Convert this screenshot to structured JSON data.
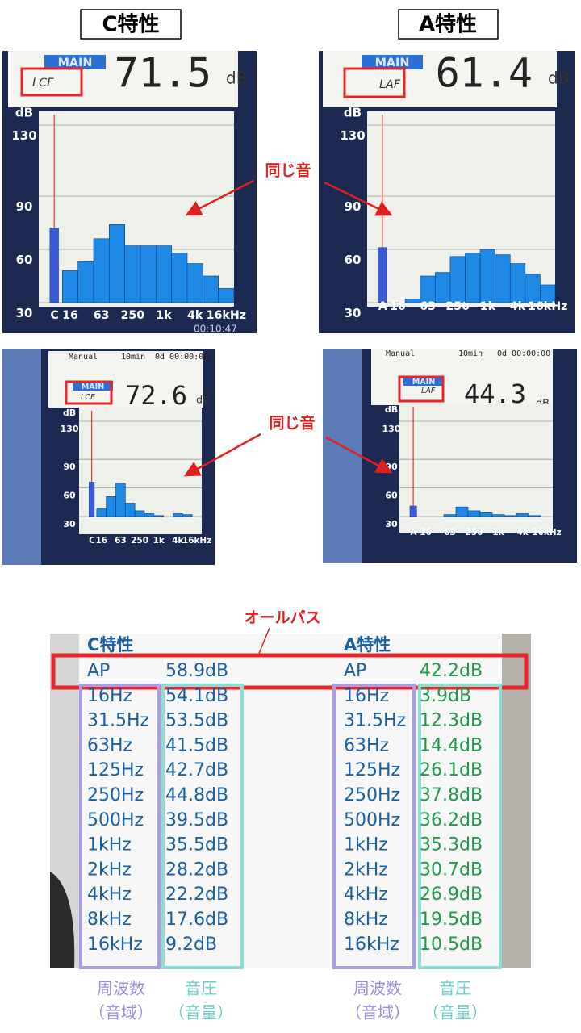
{
  "titles": {
    "c": "C特性",
    "a": "A特性"
  },
  "same_sound": [
    "同じ音",
    "同じ音"
  ],
  "meters": [
    {
      "main": "MAIN",
      "mode": "LCF",
      "reading": "71.5",
      "unit": "dB",
      "clock": "00:10:47",
      "chart": {
        "type": "bar",
        "y_label": "dB",
        "ylim": [
          30,
          130
        ],
        "yticks": [
          130,
          90,
          60,
          30
        ],
        "categories": [
          "C",
          "16",
          null,
          "63",
          null,
          "250",
          null,
          "1k",
          null,
          "4k",
          null,
          "16kHz"
        ],
        "values": [
          72,
          48,
          53,
          66,
          74,
          62,
          62,
          62,
          58,
          52,
          45,
          38
        ],
        "color": "#1e88e5",
        "highlight_color": "#3d5bd9"
      }
    },
    {
      "main": "MAIN",
      "mode": "LAF",
      "reading": "61.4",
      "unit": "dB",
      "chart": {
        "type": "bar",
        "y_label": "dB",
        "ylim": [
          30,
          130
        ],
        "yticks": [
          130,
          90,
          60,
          30
        ],
        "categories": [
          "A",
          "16",
          null,
          "63",
          null,
          "250",
          null,
          "1k",
          null,
          "4k",
          null,
          "16kHz"
        ],
        "values": [
          61,
          30,
          32,
          45,
          47,
          56,
          58,
          60,
          57,
          52,
          46,
          40
        ],
        "color": "#1e88e5",
        "highlight_color": "#3d5bd9"
      }
    },
    {
      "status": [
        "Manual",
        "10min",
        "0d 00:00:00"
      ],
      "main": "MAIN",
      "mode": "LCF",
      "reading": "72.6",
      "unit": "dB",
      "chart": {
        "type": "bar",
        "y_label": "dB",
        "ylim": [
          30,
          130
        ],
        "yticks": [
          130,
          90,
          60,
          30
        ],
        "categories": [
          "C",
          "16",
          null,
          "63",
          null,
          "250",
          null,
          "1k",
          null,
          "4k",
          null,
          "16kHz"
        ],
        "values": [
          66,
          38,
          51,
          65,
          44,
          36,
          33,
          31,
          30,
          33,
          32,
          30
        ],
        "color": "#1e88e5",
        "highlight_color": "#3d5bd9"
      }
    },
    {
      "status": [
        "Manual",
        "10min",
        "0d 00:00:00"
      ],
      "main": "MAIN",
      "mode": "LAF",
      "reading": "44.3",
      "unit": "dB",
      "chart": {
        "type": "bar",
        "y_label": "dB",
        "ylim": [
          30,
          130
        ],
        "yticks": [
          130,
          90,
          60,
          30
        ],
        "categories": [
          "A",
          "16",
          null,
          "63",
          null,
          "250",
          null,
          "1k",
          null,
          "4k",
          null,
          "16kHz"
        ],
        "values": [
          41,
          30,
          30,
          32,
          40,
          36,
          34,
          32,
          31,
          33,
          31,
          30
        ],
        "color": "#1e88e5",
        "highlight_color": "#3d5bd9"
      }
    }
  ],
  "table": {
    "allpass_label": "オールパス",
    "columns": [
      {
        "heading": "C特性",
        "value_color": "#1a5fa0",
        "rows": [
          [
            "AP",
            "58.9dB"
          ],
          [
            "16Hz",
            "54.1dB"
          ],
          [
            "31.5Hz",
            "53.5dB"
          ],
          [
            "63Hz",
            "41.5dB"
          ],
          [
            "125Hz",
            "42.7dB"
          ],
          [
            "250Hz",
            "44.8dB"
          ],
          [
            "500Hz",
            "39.5dB"
          ],
          [
            "1kHz",
            "35.5dB"
          ],
          [
            "2kHz",
            "28.2dB"
          ],
          [
            "4kHz",
            "22.2dB"
          ],
          [
            "8kHz",
            "17.6dB"
          ],
          [
            "16kHz",
            "9.2dB"
          ]
        ],
        "legend": [
          [
            "周波数",
            "（音域）"
          ],
          [
            "音圧",
            "（音量）"
          ]
        ]
      },
      {
        "heading": "A特性",
        "value_color": "#1e9a4a",
        "rows": [
          [
            "AP",
            "42.2dB"
          ],
          [
            "16Hz",
            "3.9dB"
          ],
          [
            "31.5Hz",
            "12.3dB"
          ],
          [
            "63Hz",
            "14.4dB"
          ],
          [
            "125Hz",
            "26.1dB"
          ],
          [
            "250Hz",
            "37.8dB"
          ],
          [
            "500Hz",
            "36.2dB"
          ],
          [
            "1kHz",
            "35.3dB"
          ],
          [
            "2kHz",
            "30.7dB"
          ],
          [
            "4kHz",
            "26.9dB"
          ],
          [
            "8kHz",
            "19.5dB"
          ],
          [
            "16kHz",
            "10.5dB"
          ]
        ],
        "legend": [
          [
            "周波数",
            "（音域）"
          ],
          [
            "音圧",
            "（音量）"
          ]
        ]
      }
    ]
  }
}
